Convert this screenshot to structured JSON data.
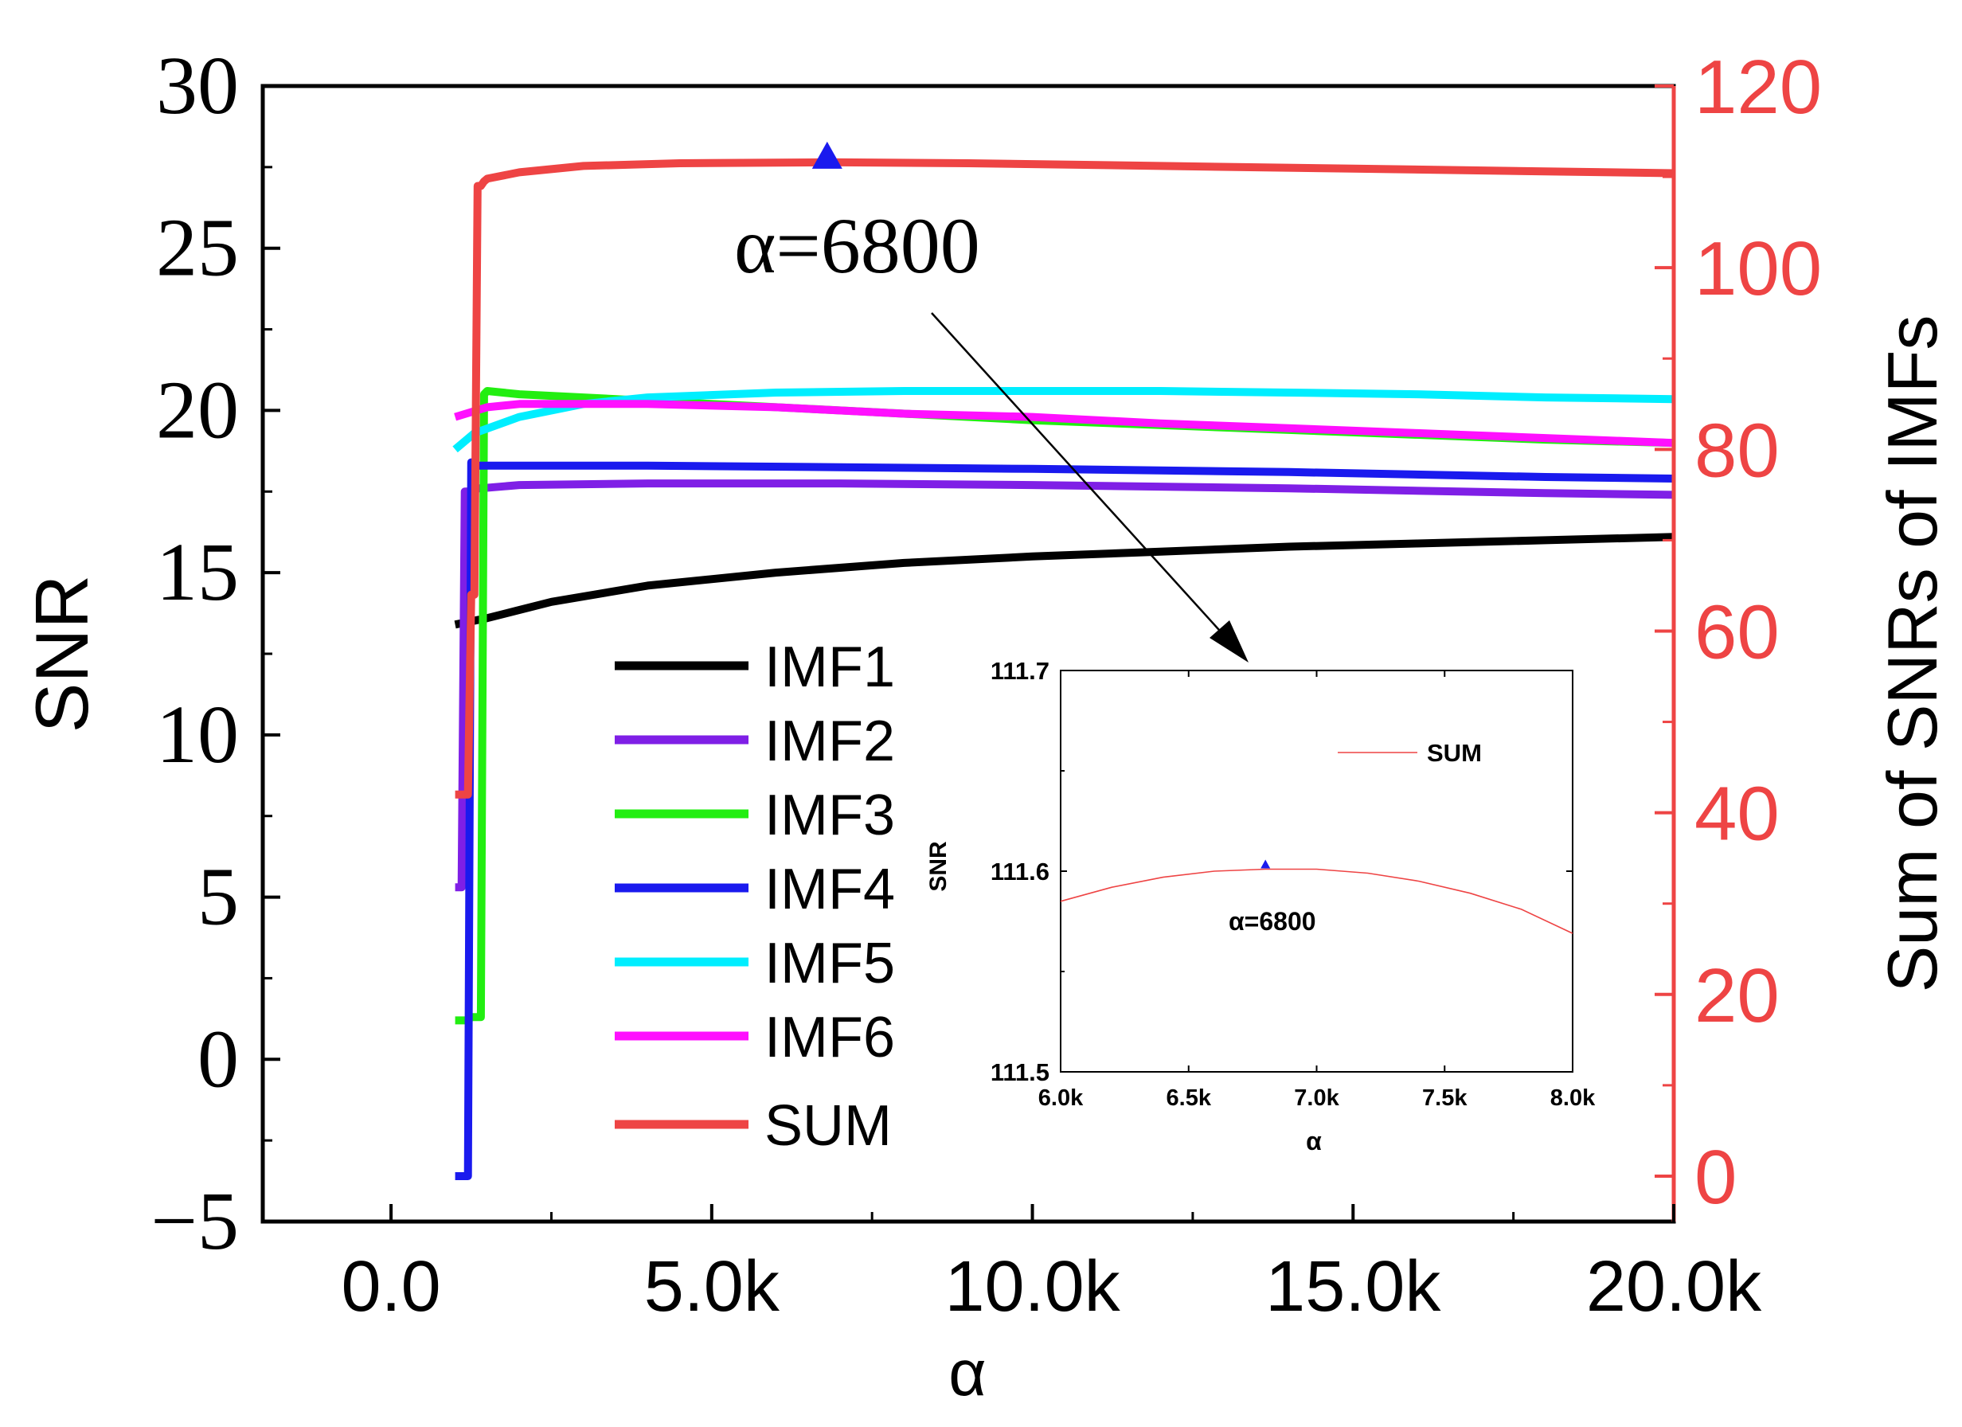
{
  "chart_data": [
    {
      "type": "line",
      "title": "",
      "xlabel": "α",
      "ylabel": "SNR",
      "y2label": "Sum of SNRs of IMFs",
      "xlim": [
        -2000,
        20000
      ],
      "ylim": [
        -5,
        30
      ],
      "y2lim": [
        -5,
        120
      ],
      "xticks": [
        0,
        5000,
        10000,
        15000,
        20000
      ],
      "xtick_labels": [
        "0.0",
        "5.0k",
        "10.0k",
        "15.0k",
        "20.0k"
      ],
      "yticks": [
        -5,
        0,
        5,
        10,
        15,
        20,
        25,
        30
      ],
      "ytick_labels": [
        "−5",
        "0",
        "5",
        "10",
        "15",
        "20",
        "25",
        "30"
      ],
      "y2ticks": [
        0,
        20,
        40,
        60,
        80,
        100,
        120
      ],
      "y2tick_labels": [
        "0",
        "20",
        "40",
        "60",
        "80",
        "100",
        "120"
      ],
      "legend": "center",
      "colors": {
        "IMF1": "#000000",
        "IMF2": "#7f1fe6",
        "IMF3": "#22ee11",
        "IMF4": "#1a1aee",
        "IMF5": "#00eeff",
        "IMF6": "#ff10ff",
        "SUM": "#ee4444",
        "right_axis": "#ee4444",
        "marker": "#1a1aee"
      },
      "series": [
        {
          "name": "IMF1",
          "axis": "left",
          "x": [
            1000,
            1500,
            2500,
            4000,
            6000,
            8000,
            10000,
            12000,
            14000,
            16000,
            18000,
            20000
          ],
          "values": [
            13.4,
            13.6,
            14.1,
            14.6,
            15.0,
            15.3,
            15.5,
            15.65,
            15.8,
            15.9,
            16.0,
            16.1
          ]
        },
        {
          "name": "IMF2",
          "axis": "left",
          "x": [
            1000,
            1100,
            1150,
            1200,
            1250,
            1300,
            1400,
            2000,
            4000,
            7000,
            10000,
            14000,
            18000,
            20000
          ],
          "values": [
            5.3,
            5.3,
            17.5,
            17.5,
            17.55,
            17.6,
            17.6,
            17.7,
            17.75,
            17.75,
            17.7,
            17.6,
            17.45,
            17.4
          ]
        },
        {
          "name": "IMF3",
          "axis": "left",
          "x": [
            1000,
            1200,
            1250,
            1300,
            1350,
            1400,
            1450,
            1500,
            2000,
            4000,
            7000,
            10000,
            14000,
            18000,
            20000
          ],
          "values": [
            1.2,
            1.2,
            1.3,
            1.3,
            1.3,
            1.3,
            20.5,
            20.6,
            20.5,
            20.3,
            20.0,
            19.7,
            19.4,
            19.1,
            19.0
          ]
        },
        {
          "name": "IMF4",
          "axis": "left",
          "x": [
            1000,
            1200,
            1250,
            1300,
            1500,
            2000,
            4000,
            7000,
            10000,
            14000,
            18000,
            20000
          ],
          "values": [
            -3.6,
            -3.6,
            18.4,
            18.3,
            18.3,
            18.3,
            18.3,
            18.25,
            18.2,
            18.1,
            17.95,
            17.9
          ]
        },
        {
          "name": "IMF5",
          "axis": "left",
          "x": [
            1000,
            1300,
            2000,
            3000,
            4000,
            6000,
            8000,
            10000,
            12000,
            14000,
            16000,
            18000,
            20000
          ],
          "values": [
            18.8,
            19.3,
            19.8,
            20.2,
            20.4,
            20.55,
            20.6,
            20.6,
            20.6,
            20.55,
            20.5,
            20.4,
            20.35
          ]
        },
        {
          "name": "IMF6",
          "axis": "left",
          "x": [
            1000,
            1500,
            2000,
            4000,
            6000,
            8000,
            10000,
            12000,
            14000,
            16000,
            18000,
            20000
          ],
          "values": [
            19.8,
            20.1,
            20.2,
            20.2,
            20.1,
            19.9,
            19.8,
            19.6,
            19.45,
            19.3,
            19.15,
            19.0
          ]
        },
        {
          "name": "SUM",
          "axis": "right",
          "x": [
            1000,
            1200,
            1250,
            1300,
            1350,
            1400,
            1450,
            1500,
            2000,
            3000,
            4500,
            6800,
            9000,
            12000,
            15000,
            18000,
            20000
          ],
          "values": [
            42,
            42,
            64,
            64,
            109,
            109,
            109.5,
            109.8,
            110.5,
            111.2,
            111.5,
            111.6,
            111.5,
            111.2,
            110.9,
            110.6,
            110.4
          ]
        }
      ],
      "marker": {
        "x": 6800,
        "y": 111.6,
        "axis": "right",
        "shape": "triangle"
      },
      "annotation": {
        "text": "α=6800"
      }
    },
    {
      "type": "line",
      "role": "inset",
      "title": "",
      "xlabel": "α",
      "ylabel": "SNR",
      "xlim": [
        6000,
        8000
      ],
      "ylim": [
        111.5,
        111.7
      ],
      "xticks": [
        6000,
        6500,
        7000,
        7500,
        8000
      ],
      "xtick_labels": [
        "6.0k",
        "6.5k",
        "7.0k",
        "7.5k",
        "8.0k"
      ],
      "yticks": [
        111.5,
        111.6,
        111.7
      ],
      "ytick_labels": [
        "111.5",
        "111.6",
        "111.7"
      ],
      "legend": "top-right",
      "series": [
        {
          "name": "SUM",
          "x": [
            6000,
            6200,
            6400,
            6600,
            6800,
            7000,
            7200,
            7400,
            7600,
            7800,
            8000
          ],
          "values": [
            111.585,
            111.592,
            111.597,
            111.6,
            111.601,
            111.601,
            111.599,
            111.595,
            111.589,
            111.581,
            111.569
          ]
        }
      ],
      "marker": {
        "x": 6800,
        "y": 111.601,
        "shape": "triangle"
      },
      "annotation": {
        "text": "α=6800"
      }
    }
  ]
}
